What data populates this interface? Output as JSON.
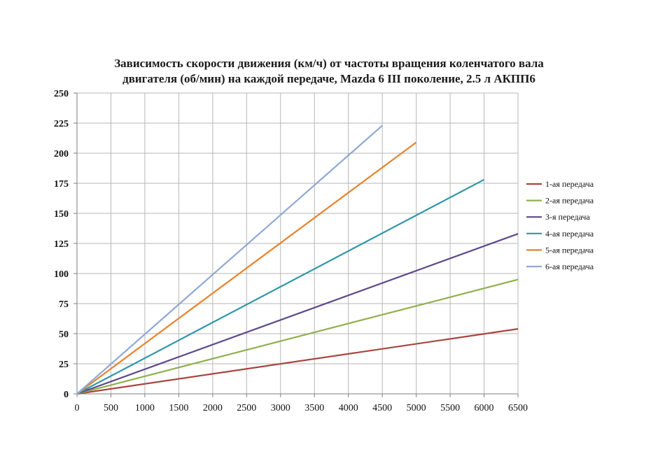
{
  "chart_data": {
    "type": "line",
    "title_lines": [
      "Зависимость скорости движения (км/ч) от частоты вращения коленчатого вала",
      "двигателя (об/мин) на каждой передаче, Mazda 6 III поколение, 2.5 л АКПП6"
    ],
    "xlabel": "",
    "ylabel": "",
    "xlim": [
      0,
      6500
    ],
    "ylim": [
      0,
      250
    ],
    "x_ticks": [
      0,
      500,
      1000,
      1500,
      2000,
      2500,
      3000,
      3500,
      4000,
      4500,
      5000,
      5500,
      6000,
      6500
    ],
    "y_ticks": [
      0,
      25,
      50,
      75,
      100,
      125,
      150,
      175,
      200,
      225,
      250
    ],
    "grid": true,
    "legend_position": "right",
    "series": [
      {
        "name": "1-ая передача",
        "color": "#a9443f",
        "x": [
          0,
          6500
        ],
        "y": [
          0,
          54
        ]
      },
      {
        "name": "2-ая передача",
        "color": "#8fb04a",
        "x": [
          0,
          6500
        ],
        "y": [
          0,
          95
        ]
      },
      {
        "name": "3-я передача",
        "color": "#5e4a8a",
        "x": [
          0,
          6500
        ],
        "y": [
          0,
          133
        ]
      },
      {
        "name": "4-ая передача",
        "color": "#2f97a8",
        "x": [
          0,
          6000
        ],
        "y": [
          0,
          178
        ]
      },
      {
        "name": "5-ая передача",
        "color": "#e8822a",
        "x": [
          0,
          5000
        ],
        "y": [
          0,
          209
        ]
      },
      {
        "name": "6-ая передача",
        "color": "#8fa9d4",
        "x": [
          0,
          4500
        ],
        "y": [
          0,
          223
        ]
      }
    ]
  }
}
